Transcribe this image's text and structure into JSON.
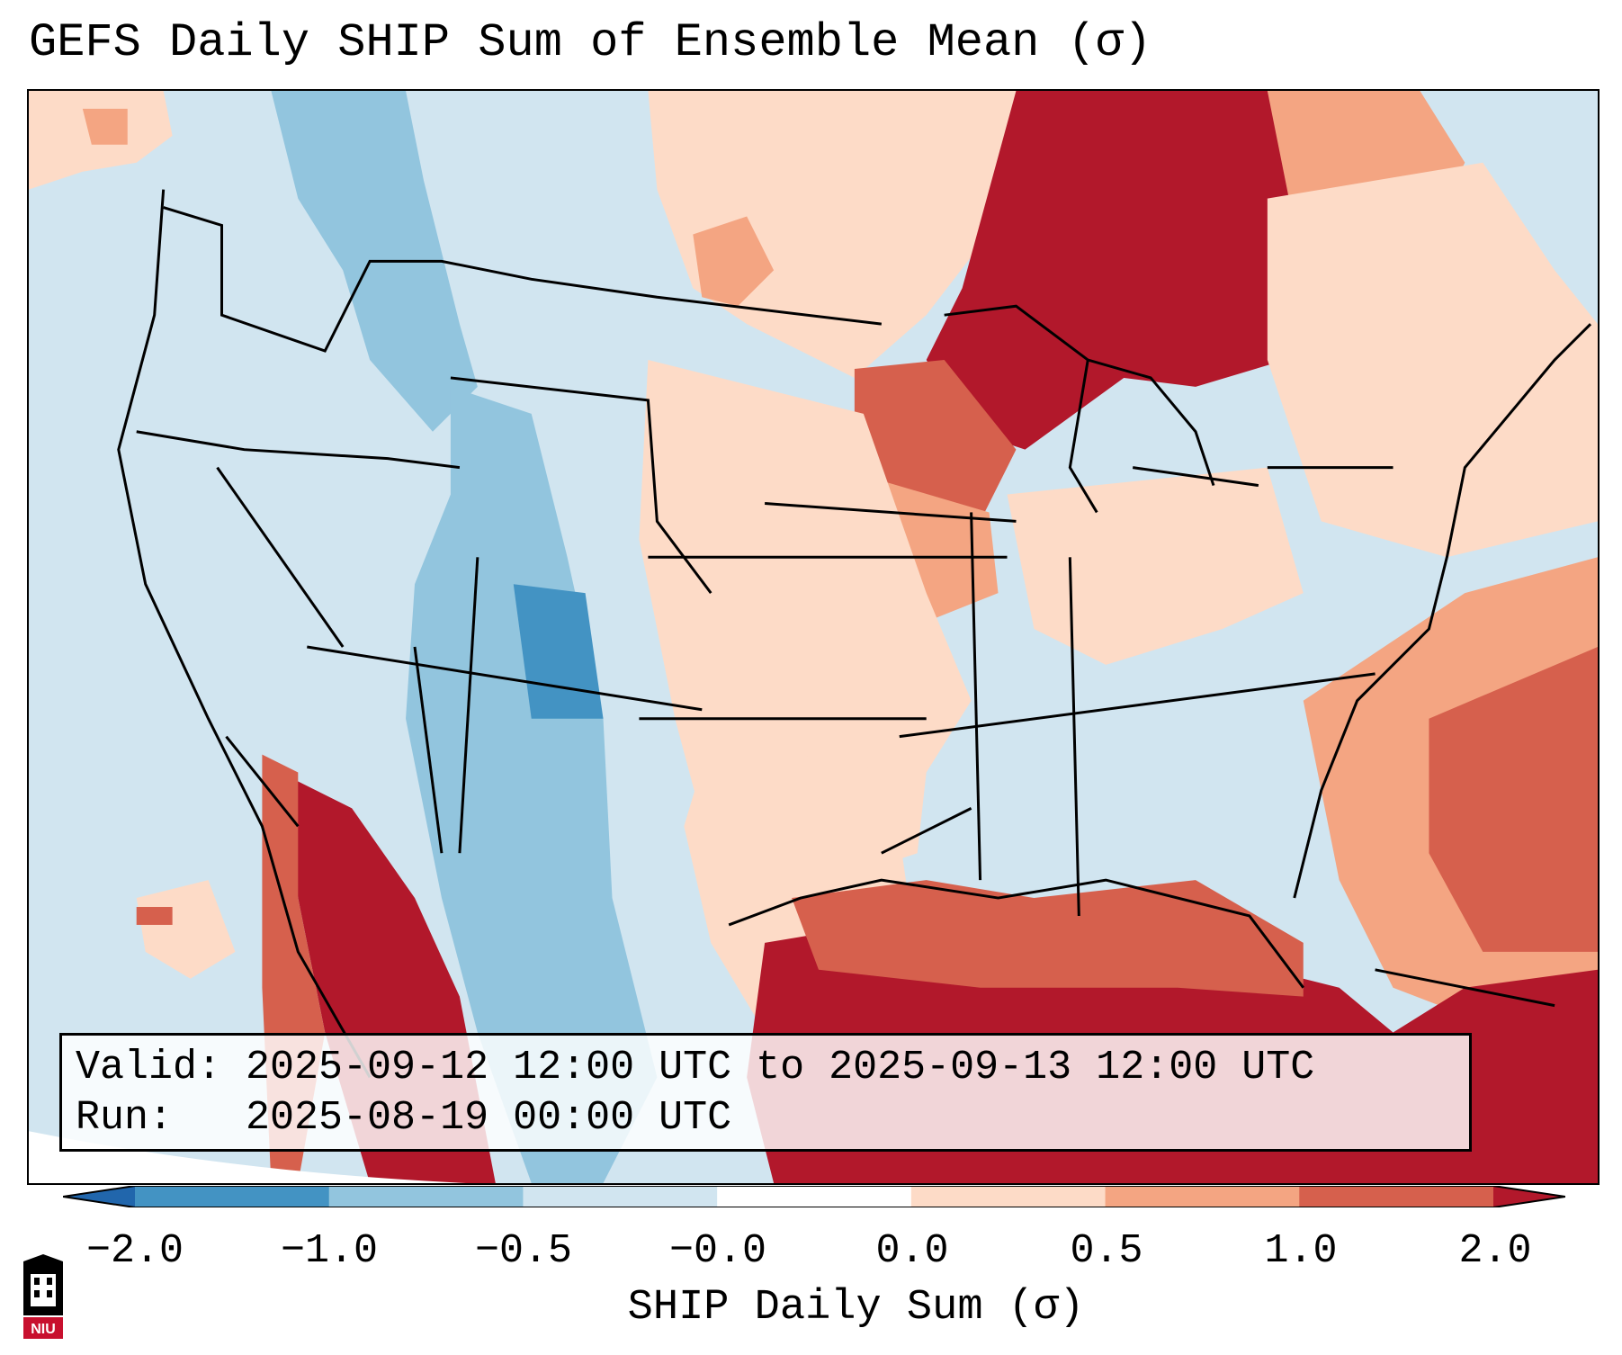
{
  "title": "GEFS Daily SHIP Sum of Ensemble Mean (σ)",
  "info": {
    "valid": "Valid: 2025-09-12 12:00 UTC to 2025-09-13 12:00 UTC",
    "run": "Run:   2025-08-19 00:00 UTC"
  },
  "colorbar": {
    "label": "SHIP Daily Sum (σ)",
    "ticks": [
      "−2.0",
      "−1.0",
      "−0.5",
      "−0.0",
      "0.0",
      "0.5",
      "1.0",
      "2.0"
    ],
    "colors": [
      "#2166ac",
      "#4393c3",
      "#92c5de",
      "#d1e5f0",
      "#ffffff",
      "#fddbc7",
      "#f4a582",
      "#d6604d",
      "#b2182b"
    ],
    "extend": "both"
  },
  "logo_text": "NIU",
  "map": {
    "region": "Contiguous United States",
    "colors": {
      "strong_positive": "#b2182b",
      "positive": "#d6604d",
      "moderate_positive": "#f4a582",
      "weak_positive": "#fddbc7",
      "weak_negative": "#d1e5f0",
      "moderate_negative": "#92c5de",
      "negative": "#4393c3"
    }
  }
}
